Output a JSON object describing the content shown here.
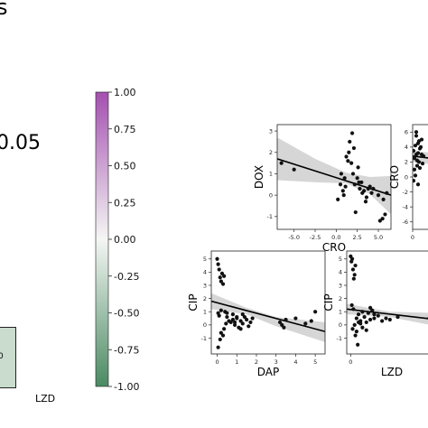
{
  "page": {
    "heading": "s",
    "pvalue_text": "0.05",
    "heat_cell_text": "0",
    "heat_cell_color": "#c9dccd",
    "heat_xlabel": "LZD"
  },
  "colorbar": {
    "ticks": [
      "1.00",
      "0.75",
      "0.50",
      "0.25",
      "0.00",
      "-0.25",
      "-0.50",
      "-0.75",
      "-1.00"
    ],
    "top_color": "#a44fb0",
    "mid_color": "#f4f6f4",
    "bottom_color": "#4a8a62"
  },
  "chart_data": [
    {
      "type": "scatter",
      "xlabel": "CRO",
      "ylabel": "DOX",
      "xlim": [
        -7,
        6.5
      ],
      "ylim": [
        -1.6,
        3.3
      ],
      "xticks": [
        "-5.0",
        "-2.5",
        "0.0",
        "2.5",
        "5.0"
      ],
      "yticks": [
        "-1",
        "0",
        "1",
        "2",
        "3"
      ],
      "x": [
        -6.5,
        -5.0,
        0.2,
        0.5,
        0.8,
        1.0,
        1.2,
        1.5,
        1.8,
        2.0,
        2.2,
        2.5,
        2.8,
        3.0,
        3.3,
        3.6,
        4.0,
        4.4,
        5.0,
        5.5,
        0.6,
        1.1,
        1.6,
        2.1,
        2.6,
        3.1,
        3.5,
        4.2,
        1.4,
        2.3,
        0.9,
        1.9,
        2.7,
        3.8,
        5.2,
        5.8,
        6.0,
        5.6
      ],
      "y": [
        1.5,
        1.2,
        -0.2,
        0.5,
        0.2,
        0.8,
        1.8,
        2.0,
        1.5,
        1.0,
        0.5,
        0.8,
        0.3,
        0.6,
        0.2,
        -0.1,
        0.4,
        0.3,
        0.0,
        -1.1,
        1.0,
        0.4,
        2.5,
        2.2,
        1.3,
        0.1,
        -0.3,
        0.1,
        1.6,
        -0.8,
        0.0,
        2.9,
        0.6,
        0.3,
        -1.2,
        -0.9,
        0.1,
        -0.2
      ],
      "fit": [
        [
          -7,
          1.7
        ],
        [
          6.5,
          0.0
        ]
      ],
      "band": [
        [
          -7,
          2.7,
          0.7
        ],
        [
          -2.5,
          1.7,
          0.6
        ],
        [
          1.2,
          1.05,
          0.55
        ],
        [
          4,
          0.85,
          0.05
        ],
        [
          6.5,
          0.9,
          -0.9
        ]
      ]
    },
    {
      "type": "scatter",
      "xlabel": "",
      "ylabel": "CRO",
      "xlim": [
        0,
        2
      ],
      "ylim": [
        -7,
        7
      ],
      "xticks": [
        "0"
      ],
      "yticks": [
        "-6",
        "-4",
        "-2",
        "0",
        "2",
        "4",
        "6"
      ],
      "x": [
        0.05,
        0.1,
        0.15,
        0.2,
        0.25,
        0.3,
        0.35,
        0.4,
        0.5,
        0.6,
        0.1,
        0.2,
        0.3,
        0.45,
        0.55,
        0.15,
        0.25,
        0.35,
        0.05,
        0.4,
        0.5,
        0.2,
        0.3
      ],
      "y": [
        3.5,
        2.5,
        4.2,
        3.0,
        1.5,
        4.5,
        2.0,
        3.8,
        5.0,
        2.8,
        1.0,
        5.5,
        3.2,
        4.0,
        1.8,
        0.2,
        2.2,
        4.8,
        -0.5,
        1.2,
        3.0,
        6.0,
        -1.0
      ],
      "fit": [
        [
          0,
          2.8
        ],
        [
          2,
          2.2
        ]
      ],
      "band": [
        [
          0,
          3.5,
          2.0
        ],
        [
          2,
          3.0,
          1.4
        ]
      ]
    },
    {
      "type": "scatter",
      "xlabel": "DAP",
      "ylabel": "CIP",
      "xlim": [
        -0.3,
        5.5
      ],
      "ylim": [
        -2.2,
        5.6
      ],
      "xticks": [
        "0",
        "1",
        "2",
        "3",
        "4",
        "5"
      ],
      "yticks": [
        "-1",
        "0",
        "1",
        "2",
        "3",
        "4",
        "5"
      ],
      "x": [
        0,
        0.05,
        0.1,
        0.15,
        0.2,
        0.25,
        0.3,
        0.35,
        0.4,
        0.5,
        0.6,
        0.7,
        0.8,
        0.9,
        1.0,
        1.1,
        1.2,
        1.3,
        1.4,
        1.5,
        1.6,
        1.7,
        1.8,
        0.2,
        0.35,
        0.45,
        0.15,
        0.3,
        0.05,
        0.1,
        0.8,
        1.0,
        1.2,
        3.2,
        3.3,
        3.4,
        3.5,
        4.0,
        4.5,
        4.8,
        5.0,
        0.5,
        0.9,
        1.3,
        0.05,
        0.2
      ],
      "y": [
        5.0,
        4.6,
        4.2,
        3.6,
        3.3,
        3.9,
        3.1,
        3.7,
        1.0,
        0.6,
        0.3,
        0.2,
        0.4,
        0.0,
        0.5,
        -0.2,
        0.3,
        0.1,
        0.6,
        0.4,
        -0.1,
        0.2,
        0.5,
        -0.6,
        -0.3,
        0.1,
        -1.1,
        -0.8,
        -1.7,
        0.7,
        0.8,
        0.6,
        -0.3,
        0.2,
        0.0,
        -0.2,
        0.4,
        0.5,
        0.1,
        0.3,
        1.0,
        0.9,
        0.2,
        0.8,
        0.9,
        1.1
      ],
      "fit": [
        [
          -0.3,
          1.8
        ],
        [
          5.5,
          -0.5
        ]
      ],
      "band": [
        [
          -0.3,
          2.4,
          1.2
        ],
        [
          1.5,
          1.3,
          0.8
        ],
        [
          3,
          0.6,
          -0.1
        ],
        [
          5.5,
          0.2,
          -1.3
        ]
      ]
    },
    {
      "type": "scatter",
      "xlabel": "LZD",
      "ylabel": "CIP",
      "xlim": [
        -0.1,
        2.2
      ],
      "ylim": [
        -2.2,
        5.6
      ],
      "xticks": [
        "0"
      ],
      "yticks": [
        "-1",
        "0",
        "1",
        "2",
        "3",
        "4",
        "5"
      ],
      "x": [
        0,
        0.02,
        0.04,
        0.06,
        0.08,
        0.1,
        0.12,
        0.15,
        0.2,
        0.25,
        0.3,
        0.35,
        0.4,
        0.45,
        0.5,
        0.55,
        0.6,
        0.7,
        0.8,
        0.9,
        1.0,
        1.2,
        0.05,
        0.1,
        0.15,
        0.2,
        0.3,
        0.03,
        0.07,
        0.12,
        0.18,
        0.25,
        0.4,
        0.5,
        0.6,
        2.0,
        2.1
      ],
      "y": [
        5.2,
        4.8,
        5.0,
        4.2,
        3.5,
        3.8,
        4.5,
        0.5,
        0.8,
        0.3,
        1.0,
        0.6,
        0.2,
        0.9,
        0.4,
        1.1,
        0.5,
        0.7,
        0.3,
        0.5,
        0.4,
        0.6,
        -0.3,
        0.0,
        -0.5,
        0.2,
        -0.2,
        1.5,
        1.2,
        -0.8,
        -1.5,
        0.1,
        -0.4,
        1.3,
        0.8,
        0.5,
        0.3
      ],
      "fit": [
        [
          -0.1,
          1.2
        ],
        [
          2.2,
          0.4
        ]
      ],
      "band": [
        [
          -0.1,
          1.6,
          0.8
        ],
        [
          1,
          1.0,
          0.6
        ],
        [
          2.2,
          0.9,
          -0.1
        ]
      ]
    }
  ]
}
